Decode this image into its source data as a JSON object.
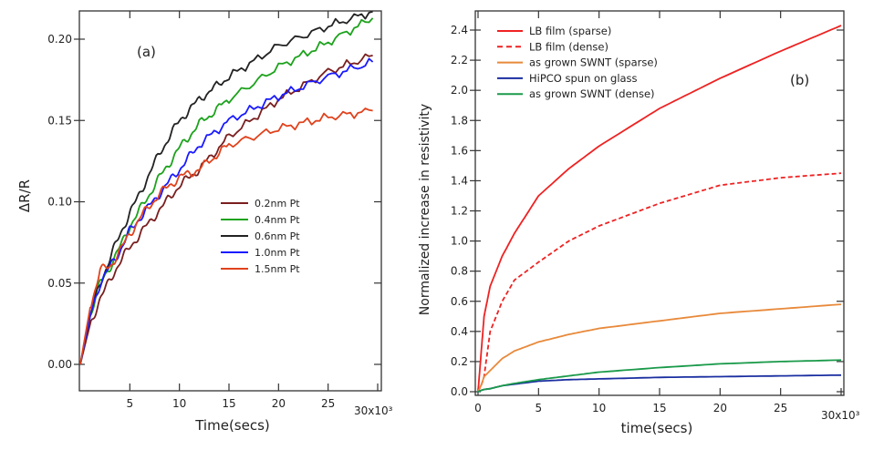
{
  "chart_data": [
    {
      "type": "line",
      "panel_label": "(a)",
      "xlabel": "Time(secs)",
      "ylabel": "ΔR/R",
      "x_multiplier_label": "30x10³",
      "xlim": [
        0,
        30
      ],
      "ylim": [
        -0.015,
        0.218
      ],
      "xticks": [
        5,
        10,
        15,
        20,
        25
      ],
      "xtick_labels": [
        "5",
        "10",
        "15",
        "20",
        "25"
      ],
      "yticks": [
        0.0,
        0.05,
        0.1,
        0.15,
        0.2
      ],
      "ytick_labels": [
        "0.00",
        "0.05",
        "0.10",
        "0.15",
        "0.20"
      ],
      "grid": false,
      "legend_placement": "center-right",
      "x": [
        0,
        1,
        2,
        3,
        4,
        5,
        6,
        8,
        10,
        12,
        15,
        20,
        25,
        29.5
      ],
      "series": [
        {
          "name": "0.2nm Pt",
          "color": "#7a1f1f",
          "values": [
            0,
            0.025,
            0.04,
            0.052,
            0.063,
            0.072,
            0.08,
            0.095,
            0.11,
            0.12,
            0.14,
            0.163,
            0.18,
            0.19
          ]
        },
        {
          "name": "0.4nm Pt",
          "color": "#1ca21c",
          "values": [
            0,
            0.03,
            0.05,
            0.06,
            0.072,
            0.085,
            0.095,
            0.115,
            0.133,
            0.148,
            0.163,
            0.183,
            0.198,
            0.213
          ]
        },
        {
          "name": "0.6nm Pt",
          "color": "#222222",
          "values": [
            0,
            0.03,
            0.05,
            0.065,
            0.08,
            0.093,
            0.105,
            0.13,
            0.15,
            0.163,
            0.177,
            0.196,
            0.208,
            0.217
          ]
        },
        {
          "name": "1.0nm Pt",
          "color": "#1a1aff",
          "values": [
            0,
            0.03,
            0.05,
            0.06,
            0.07,
            0.082,
            0.09,
            0.105,
            0.12,
            0.135,
            0.15,
            0.165,
            0.177,
            0.186
          ]
        },
        {
          "name": "1.5nm Pt",
          "color": "#e0421c",
          "values": [
            0,
            0.035,
            0.058,
            0.06,
            0.07,
            0.08,
            0.09,
            0.105,
            0.115,
            0.12,
            0.135,
            0.145,
            0.152,
            0.156
          ]
        }
      ]
    },
    {
      "type": "line",
      "panel_label": "(b)",
      "xlabel": "time(secs)",
      "ylabel": "Normalized increase in resistivity",
      "x_multiplier_label": "30x10³",
      "xlim": [
        -0.2,
        30.2
      ],
      "ylim": [
        -0.01,
        2.52
      ],
      "xticks": [
        0,
        5,
        10,
        15,
        20,
        25
      ],
      "xtick_labels": [
        "0",
        "5",
        "10",
        "15",
        "20",
        "25"
      ],
      "yticks": [
        0.0,
        0.2,
        0.4,
        0.6,
        0.8,
        1.0,
        1.2,
        1.4,
        1.6,
        1.8,
        2.0,
        2.2,
        2.4
      ],
      "ytick_labels": [
        "0.0",
        "0.2",
        "0.4",
        "0.6",
        "0.8",
        "1.0",
        "1.2",
        "1.4",
        "1.6",
        "1.8",
        "2.0",
        "2.2",
        "2.4"
      ],
      "grid": false,
      "legend_placement": "top-left",
      "x": [
        0,
        0.3,
        0.5,
        1,
        2,
        3,
        5,
        7.5,
        10,
        15,
        20,
        25,
        30
      ],
      "series": [
        {
          "name": "LB film (sparse)",
          "color": "#ee2222",
          "dash": "solid",
          "values": [
            0,
            0.3,
            0.5,
            0.7,
            0.9,
            1.05,
            1.3,
            1.48,
            1.63,
            1.88,
            2.08,
            2.26,
            2.43
          ]
        },
        {
          "name": "LB film (dense)",
          "color": "#ee2222",
          "dash": "dashed",
          "values": [
            0,
            0.05,
            0.1,
            0.4,
            0.6,
            0.74,
            0.86,
            1.0,
            1.1,
            1.25,
            1.37,
            1.42,
            1.45
          ]
        },
        {
          "name": "as grown SWNT (sparse)",
          "color": "#e8893a",
          "dash": "solid",
          "values": [
            0,
            0.05,
            0.1,
            0.14,
            0.22,
            0.27,
            0.33,
            0.38,
            0.42,
            0.47,
            0.52,
            0.55,
            0.58
          ]
        },
        {
          "name": "HiPCO spun on glass",
          "color": "#1a2ea0",
          "dash": "solid",
          "values": [
            0,
            0.01,
            0.015,
            0.02,
            0.04,
            0.05,
            0.07,
            0.08,
            0.085,
            0.095,
            0.1,
            0.105,
            0.11
          ]
        },
        {
          "name": "as grown SWNT (dense)",
          "color": "#1a9a4a",
          "dash": "solid",
          "values": [
            0,
            0.01,
            0.015,
            0.02,
            0.04,
            0.055,
            0.08,
            0.105,
            0.13,
            0.16,
            0.185,
            0.2,
            0.21
          ]
        }
      ]
    }
  ]
}
